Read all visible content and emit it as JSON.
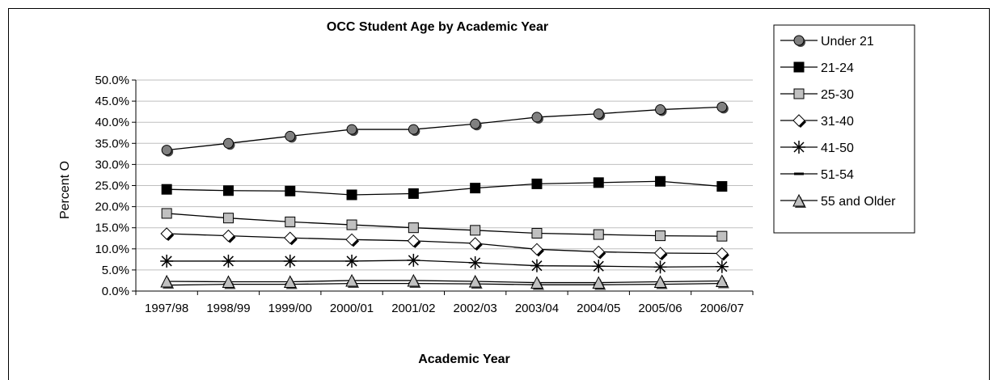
{
  "chart_data": {
    "type": "line",
    "title": "OCC Student Age by Academic Year",
    "xlabel": "Academic Year",
    "ylabel": "Percent O",
    "ylim": [
      0,
      0.5
    ],
    "y_ticks": [
      "0.0%",
      "5.0%",
      "10.0%",
      "15.0%",
      "20.0%",
      "25.0%",
      "30.0%",
      "35.0%",
      "40.0%",
      "45.0%",
      "50.0%"
    ],
    "grid": true,
    "legend_position": "right",
    "categories": [
      "1997/98",
      "1998/99",
      "1999/00",
      "2000/01",
      "2001/02",
      "2002/03",
      "2003/04",
      "2004/05",
      "2005/06",
      "2006/07"
    ],
    "series": [
      {
        "name": "Under 21",
        "marker": "circle",
        "color": "#808080",
        "values": [
          0.334,
          0.35,
          0.367,
          0.383,
          0.383,
          0.396,
          0.412,
          0.42,
          0.43,
          0.436
        ]
      },
      {
        "name": "21-24",
        "marker": "square",
        "color": "#000000",
        "values": [
          0.241,
          0.238,
          0.237,
          0.228,
          0.231,
          0.244,
          0.254,
          0.257,
          0.26,
          0.248
        ]
      },
      {
        "name": "25-30",
        "marker": "square",
        "color": "#c0c0c0",
        "values": [
          0.184,
          0.173,
          0.164,
          0.157,
          0.15,
          0.144,
          0.137,
          0.134,
          0.131,
          0.13
        ]
      },
      {
        "name": "31-40",
        "marker": "diamond",
        "color": "#ffffff",
        "values": [
          0.136,
          0.131,
          0.126,
          0.122,
          0.119,
          0.113,
          0.099,
          0.093,
          0.09,
          0.089
        ]
      },
      {
        "name": "41-50",
        "marker": "asterisk",
        "color": "#000000",
        "values": [
          0.071,
          0.071,
          0.071,
          0.071,
          0.073,
          0.067,
          0.06,
          0.059,
          0.057,
          0.058
        ]
      },
      {
        "name": "51-54",
        "marker": "dash",
        "color": "#000000",
        "values": [
          0.014,
          0.016,
          0.016,
          0.018,
          0.018,
          0.017,
          0.015,
          0.015,
          0.016,
          0.018
        ]
      },
      {
        "name": "55 and Older",
        "marker": "triangle",
        "color": "#c0c0c0",
        "values": [
          0.023,
          0.022,
          0.022,
          0.025,
          0.025,
          0.023,
          0.02,
          0.02,
          0.022,
          0.024
        ]
      }
    ]
  }
}
